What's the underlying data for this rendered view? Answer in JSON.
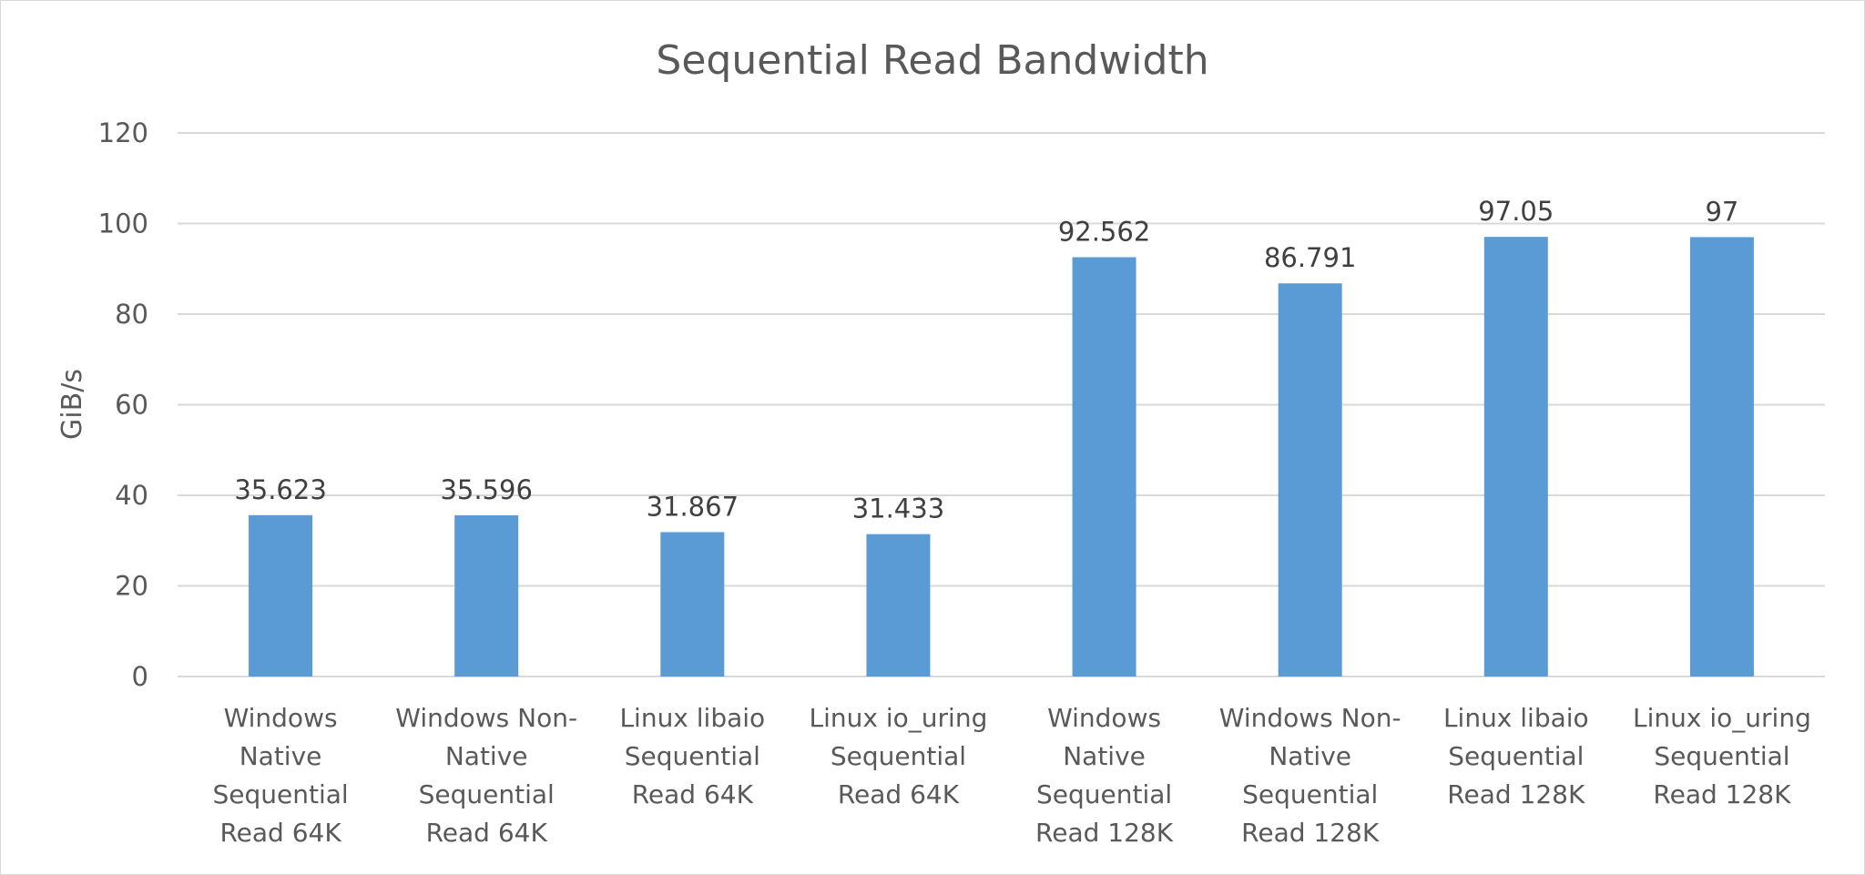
{
  "chart_data": {
    "type": "bar",
    "title": "Sequential Read Bandwidth",
    "xlabel": "",
    "ylabel": "GiB/s",
    "ylim": [
      0,
      120
    ],
    "yticks": [
      0,
      20,
      40,
      60,
      80,
      100,
      120
    ],
    "grid": true,
    "legend": "none",
    "bar_color": "#5b9bd5",
    "categories": [
      [
        "Windows",
        "Native",
        "Sequential",
        "Read 64K"
      ],
      [
        "Windows Non-",
        "Native",
        "Sequential",
        "Read 64K"
      ],
      [
        "Linux libaio",
        "Sequential",
        "Read 64K"
      ],
      [
        "Linux io_uring",
        "Sequential",
        "Read 64K"
      ],
      [
        "Windows",
        "Native",
        "Sequential",
        "Read 128K"
      ],
      [
        "Windows Non-",
        "Native",
        "Sequential",
        "Read 128K"
      ],
      [
        "Linux libaio",
        "Sequential",
        "Read 128K"
      ],
      [
        "Linux io_uring",
        "Sequential",
        "Read 128K"
      ]
    ],
    "values": [
      35.623,
      35.596,
      31.867,
      31.433,
      92.562,
      86.791,
      97.05,
      97
    ],
    "data_labels": [
      "35.623",
      "35.596",
      "31.867",
      "31.433",
      "92.562",
      "86.791",
      "97.05",
      "97"
    ]
  }
}
